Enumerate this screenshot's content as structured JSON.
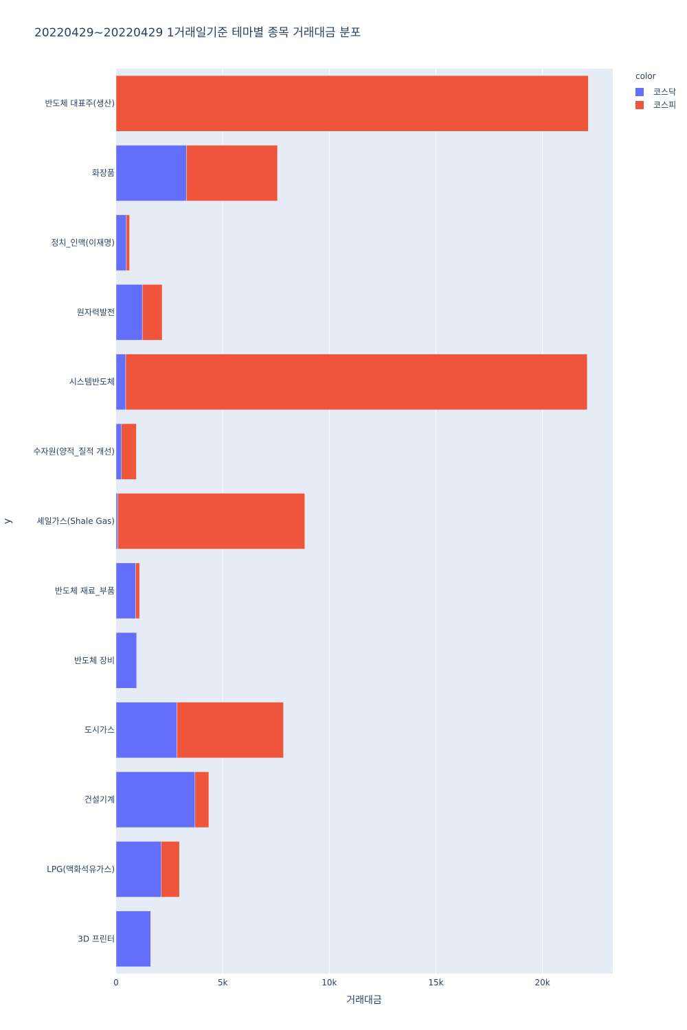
{
  "chart_data": {
    "type": "bar",
    "orientation": "horizontal",
    "barmode": "stack",
    "title": "20220429~20220429 1거래일기준 테마별 종목 거래대금 분포",
    "xlabel": "거래대금",
    "ylabel": "y",
    "xlim": [
      0,
      23300
    ],
    "grid": true,
    "legend_title": "color",
    "legend_position": "top-right",
    "x_ticks": [
      {
        "value": 0,
        "label": "0"
      },
      {
        "value": 5000,
        "label": "5k"
      },
      {
        "value": 10000,
        "label": "10k"
      },
      {
        "value": 15000,
        "label": "15k"
      },
      {
        "value": 20000,
        "label": "20k"
      }
    ],
    "categories": [
      "반도체 대표주(생산)",
      "화장품",
      "정치_인맥(이재명)",
      "원자력발전",
      "시스템반도체",
      "수자원(양적_질적 개선)",
      "셰일가스(Shale Gas)",
      "반도체 재료_부품",
      "반도체 장비",
      "도시가스",
      "건설기계",
      "LPG(액화석유가스)",
      "3D 프린터"
    ],
    "series": [
      {
        "name": "코스닥",
        "color": "#636efa",
        "values": [
          0,
          3300,
          480,
          1230,
          450,
          250,
          80,
          920,
          960,
          2850,
          3700,
          2120,
          1620
        ]
      },
      {
        "name": "코스피",
        "color": "#ef553b",
        "values": [
          22150,
          4270,
          150,
          930,
          21650,
          700,
          8770,
          180,
          20,
          5000,
          650,
          850,
          0
        ]
      }
    ]
  }
}
